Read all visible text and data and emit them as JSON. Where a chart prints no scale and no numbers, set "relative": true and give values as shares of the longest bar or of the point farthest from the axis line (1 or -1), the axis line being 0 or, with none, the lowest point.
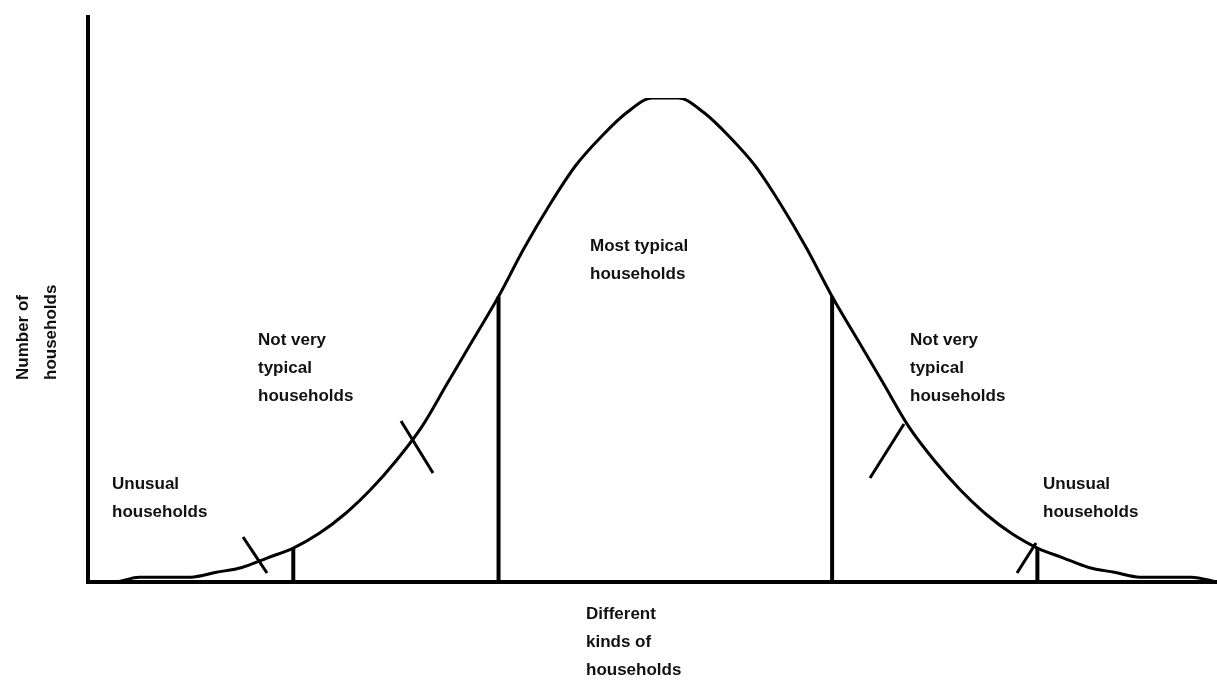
{
  "chart_data": {
    "type": "line",
    "relative": true,
    "marker": "none",
    "xlabel": "Different kinds of households",
    "ylabel": "Number of households",
    "annotations": [
      "Unusual households",
      "Not very typical households",
      "Most typical households",
      "Not very typical households",
      "Unusual households"
    ],
    "categories": [
      null,
      null,
      null,
      null,
      null,
      null,
      null,
      null,
      null,
      null,
      null,
      null,
      null,
      null,
      null,
      null,
      null,
      null,
      null,
      null,
      null,
      null,
      null,
      null,
      null,
      null,
      null,
      null,
      null,
      null,
      null,
      null,
      null,
      null,
      null,
      null,
      null,
      null,
      null,
      null,
      null,
      null,
      null,
      null,
      null
    ],
    "series": [
      {
        "type": "line",
        "color": "#000000",
        "values": [
          0,
          0,
          0.01,
          0.01,
          0.01,
          0.02,
          0.03,
          0.05,
          0.07,
          0.1,
          0.14,
          0.19,
          0.25,
          0.32,
          0.41,
          0.5,
          0.59,
          0.69,
          0.78,
          0.86,
          0.92,
          0.97,
          1,
          1,
          0.97,
          0.92,
          0.86,
          0.78,
          0.69,
          0.59,
          0.5,
          0.41,
          0.32,
          0.25,
          0.19,
          0.14,
          0.1,
          0.07,
          0.05,
          0.03,
          0.02,
          0.01,
          0.01,
          0.01,
          0
        ]
      }
    ]
  }
}
